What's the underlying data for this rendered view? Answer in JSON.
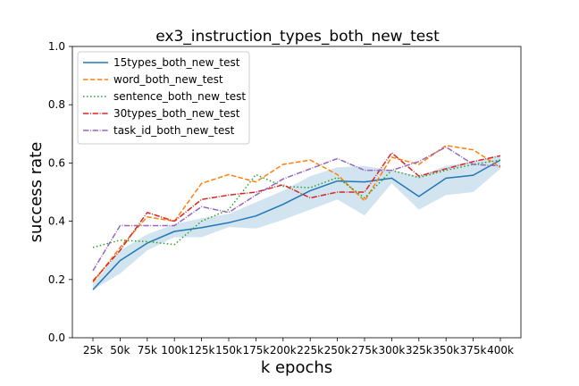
{
  "chart_data": {
    "type": "line",
    "title": "ex3_instruction_types_both_new_test",
    "xlabel": "k epochs",
    "ylabel": "success rate",
    "categories": [
      "25k",
      "50k",
      "75k",
      "100k",
      "125k",
      "150k",
      "175k",
      "200k",
      "225k",
      "250k",
      "275k",
      "300k",
      "325k",
      "350k",
      "375k",
      "400k"
    ],
    "ylim": [
      0.0,
      1.0
    ],
    "yticks": [
      "0.0",
      "0.2",
      "0.4",
      "0.6",
      "0.8",
      "1.0"
    ],
    "grid": false,
    "legend_position": "top-left",
    "series": [
      {
        "name": "15types_both_new_test",
        "color": "#1f77b4",
        "dash": "solid",
        "values": [
          0.165,
          0.265,
          0.325,
          0.365,
          0.378,
          0.395,
          0.418,
          0.458,
          0.505,
          0.538,
          0.535,
          0.548,
          0.485,
          0.548,
          0.558,
          0.61
        ],
        "band_low": [
          0.165,
          0.22,
          0.3,
          0.345,
          0.345,
          0.38,
          0.375,
          0.405,
          0.44,
          0.475,
          0.42,
          0.53,
          0.44,
          0.49,
          0.5,
          0.58
        ],
        "band_high": [
          0.185,
          0.3,
          0.355,
          0.39,
          0.41,
          0.425,
          0.465,
          0.505,
          0.555,
          0.585,
          0.59,
          0.575,
          0.555,
          0.59,
          0.605,
          0.625
        ]
      },
      {
        "name": "word_both_new_test",
        "color": "#ff7f0e",
        "dash": "dashed",
        "values": [
          0.19,
          0.31,
          0.415,
          0.4,
          0.53,
          0.56,
          0.535,
          0.595,
          0.61,
          0.56,
          0.47,
          0.62,
          0.595,
          0.66,
          0.645,
          0.585
        ]
      },
      {
        "name": "sentence_both_new_test",
        "color": "#2ca02c",
        "dash": "dotted",
        "values": [
          0.31,
          0.335,
          0.33,
          0.32,
          0.4,
          0.44,
          0.56,
          0.52,
          0.515,
          0.55,
          0.48,
          0.575,
          0.55,
          0.575,
          0.595,
          0.61
        ]
      },
      {
        "name": "30types_both_new_test",
        "color": "#d62728",
        "dash": "dashdot",
        "values": [
          0.195,
          0.3,
          0.43,
          0.4,
          0.475,
          0.49,
          0.5,
          0.525,
          0.48,
          0.5,
          0.5,
          0.635,
          0.555,
          0.58,
          0.605,
          0.625
        ]
      },
      {
        "name": "task_id_both_new_test",
        "color": "#9467bd",
        "dash": "dashdot",
        "values": [
          0.23,
          0.385,
          0.385,
          0.385,
          0.45,
          0.43,
          0.49,
          0.545,
          0.58,
          0.615,
          0.575,
          0.575,
          0.605,
          0.655,
          0.595,
          0.59
        ]
      }
    ]
  }
}
